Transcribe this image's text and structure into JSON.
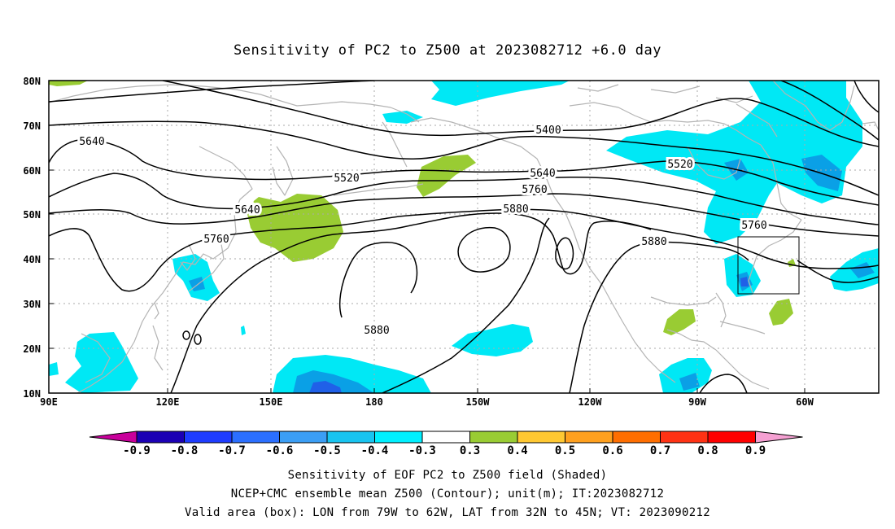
{
  "title": "Sensitivity of PC2 to Z500 at 2023082712 +6.0 day",
  "map": {
    "lon_ticks": [
      "90E",
      "120E",
      "150E",
      "180",
      "150W",
      "120W",
      "90W",
      "60W"
    ],
    "lat_ticks": [
      "80N",
      "70N",
      "60N",
      "50N",
      "40N",
      "30N",
      "20N",
      "10N"
    ],
    "contour_labels": [
      "5400",
      "5520",
      "5520",
      "5640",
      "5640",
      "5640",
      "5760",
      "5760",
      "5760",
      "5880",
      "5880",
      "5880"
    ],
    "shade_colors": {
      "blue": "#00e8f5",
      "deep": "#0aa0e6",
      "darkest": "#2060e8",
      "green": "#99cc33"
    },
    "coast_color": "#b4b4b4",
    "grid": "dotted"
  },
  "colorbar": {
    "labels": [
      "-0.9",
      "-0.8",
      "-0.7",
      "-0.6",
      "-0.5",
      "-0.4",
      "-0.3",
      "0.3",
      "0.4",
      "0.5",
      "0.6",
      "0.7",
      "0.8",
      "0.9"
    ],
    "colors": [
      "#1b00b4",
      "#1e3cff",
      "#2b6fff",
      "#3b9ef5",
      "#18c4f0",
      "#00f0ff",
      "#ffffff",
      "#99cc33",
      "#ffc832",
      "#ffa01e",
      "#ff6e00",
      "#ff3214",
      "#ff0000"
    ],
    "left_tip": "#c8009b",
    "right_tip": "#f5a0d2"
  },
  "footer": {
    "line1": "Sensitivity of EOF PC2 to Z500 field (Shaded)",
    "line2": "NCEP+CMC ensemble mean Z500 (Contour); unit(m); IT:2023082712",
    "line3": "Valid area (box): LON from 79W to 62W, LAT from 32N to 45N; VT: 2023090212"
  }
}
